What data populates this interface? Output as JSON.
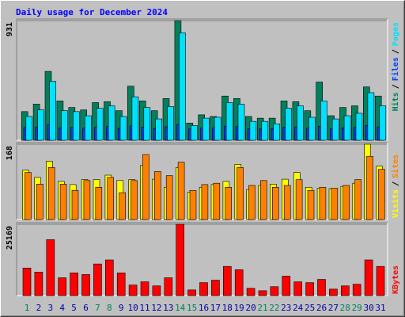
{
  "chart_data": [
    {
      "type": "bar",
      "title": "Daily usage for December 2024",
      "categories": [
        "1",
        "2",
        "3",
        "4",
        "5",
        "6",
        "7",
        "8",
        "9",
        "10",
        "11",
        "12",
        "13",
        "14",
        "15",
        "16",
        "17",
        "18",
        "19",
        "20",
        "21",
        "22",
        "23",
        "24",
        "25",
        "26",
        "27",
        "28",
        "29",
        "30",
        "31"
      ],
      "category_colors": [
        "#00805c",
        "#0000a0",
        "#0000a0",
        "#0000a0",
        "#0000a0",
        "#0000a0",
        "#00805c",
        "#00805c",
        "#0000a0",
        "#0000a0",
        "#0000a0",
        "#0000a0",
        "#0000a0",
        "#00805c",
        "#00805c",
        "#0000a0",
        "#0000a0",
        "#0000a0",
        "#0000a0",
        "#0000a0",
        "#00805c",
        "#00805c",
        "#0000a0",
        "#0000a0",
        "#0000a0",
        "#0000a0",
        "#0000a0",
        "#00805c",
        "#00805c",
        "#0000a0",
        "#0000a0"
      ],
      "legend_separator": "/",
      "series": [
        {
          "name": "Hits",
          "color": "#00805c",
          "values": [
            223,
            281,
            536,
            306,
            255,
            236,
            293,
            300,
            230,
            421,
            306,
            230,
            325,
            931,
            134,
            198,
            185,
            344,
            325,
            185,
            172,
            172,
            306,
            300,
            230,
            453,
            191,
            255,
            268,
            415,
            344
          ]
        },
        {
          "name": "Files",
          "color": "#0040ff",
          "values": [
            98,
            104,
            121,
            96,
            101,
            94,
            99,
            107,
            93,
            112,
            103,
            92,
            105,
            124,
            88,
            95,
            94,
            110,
            106,
            90,
            89,
            90,
            101,
            104,
            94,
            108,
            92,
            97,
            99,
            115,
            104
          ]
        },
        {
          "name": "Pages",
          "color": "#00e0ff",
          "values": [
            185,
            236,
            459,
            230,
            223,
            191,
            249,
            268,
            185,
            338,
            255,
            166,
            262,
            835,
            115,
            172,
            179,
            293,
            281,
            147,
            147,
            128,
            249,
            268,
            179,
            306,
            166,
            191,
            210,
            370,
            268
          ]
        }
      ],
      "ylim": [
        0,
        931
      ],
      "yticks": [
        931
      ]
    },
    {
      "type": "bar",
      "legend_separator": "/",
      "series": [
        {
          "name": "Visits",
          "color": "#ffff00",
          "values": [
            110,
            94,
            130,
            85,
            78,
            89,
            89,
            99,
            87,
            89,
            121,
            90,
            72,
            116,
            61,
            72,
            78,
            85,
            123,
            67,
            76,
            79,
            90,
            105,
            72,
            70,
            69,
            74,
            81,
            168,
            119
          ]
        },
        {
          "name": "Sites",
          "color": "#ff8000",
          "values": [
            105,
            79,
            116,
            79,
            65,
            87,
            72,
            94,
            60,
            87,
            145,
            107,
            98,
            128,
            65,
            78,
            81,
            72,
            116,
            76,
            87,
            72,
            76,
            89,
            65,
            72,
            70,
            76,
            89,
            141,
            112
          ]
        }
      ],
      "ylim": [
        0,
        168
      ],
      "yticks": [
        168
      ]
    },
    {
      "type": "bar",
      "series": [
        {
          "name": "KBytes",
          "color": "#ff0000",
          "values": [
            9725,
            8295,
            19735,
            6290,
            8010,
            7435,
            11155,
            12585,
            8010,
            3720,
            4860,
            3430,
            6290,
            25169,
            2000,
            4575,
            5435,
            10295,
            9150,
            2575,
            1715,
            3145,
            6865,
            4860,
            4575,
            5720,
            2290,
            3430,
            4005,
            12585,
            10295
          ]
        }
      ],
      "ylim": [
        0,
        25169
      ],
      "yticks": [
        25169
      ]
    }
  ]
}
